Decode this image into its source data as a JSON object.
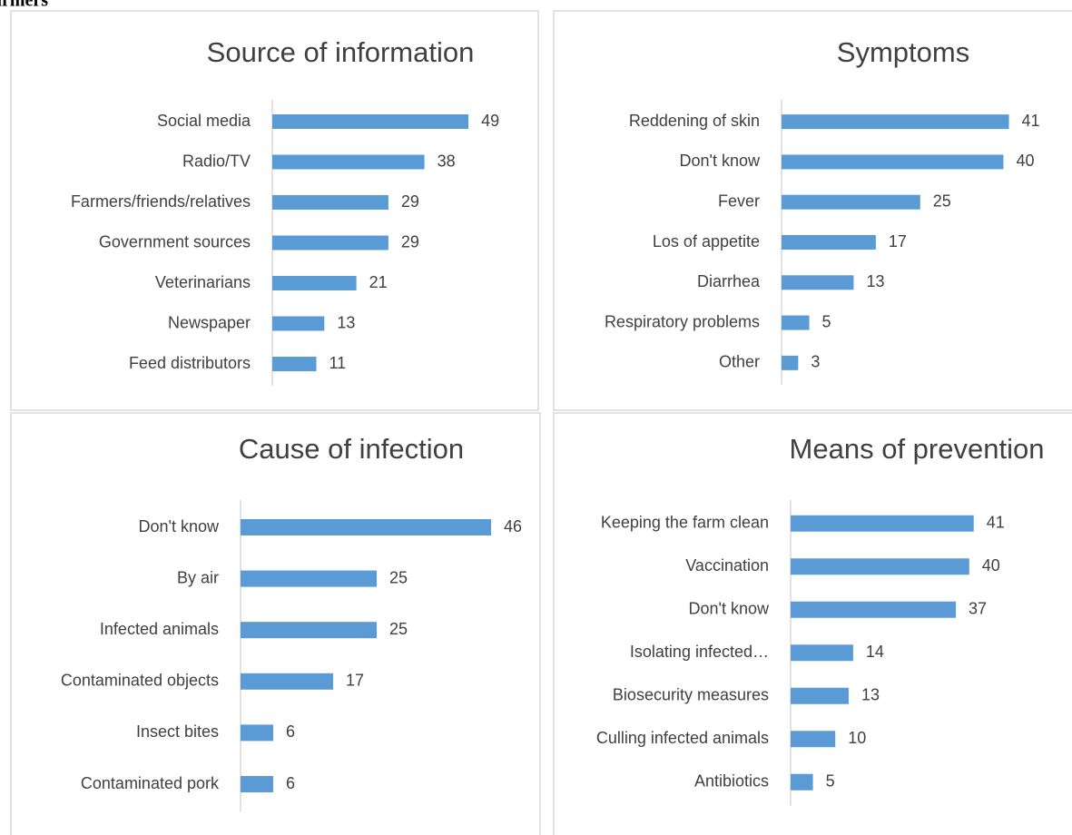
{
  "caption": "armers",
  "chart_data": [
    {
      "type": "bar",
      "orientation": "horizontal",
      "title": "Source of information",
      "categories": [
        "Social media",
        "Radio/TV",
        "Farmers/friends/relatives",
        "Government sources",
        "Veterinarians",
        "Newspaper",
        "Feed distributors"
      ],
      "values": [
        49,
        38,
        29,
        29,
        21,
        13,
        11
      ],
      "color": "#5b9bd5",
      "xlim": [
        0,
        60
      ]
    },
    {
      "type": "bar",
      "orientation": "horizontal",
      "title": "Symptoms",
      "categories": [
        "Reddening of skin",
        "Don't know",
        "Fever",
        "Los of appetite",
        "Diarrhea",
        "Respiratory problems",
        "Other"
      ],
      "values": [
        41,
        40,
        25,
        17,
        13,
        5,
        3
      ],
      "color": "#5b9bd5",
      "xlim": [
        0,
        45
      ]
    },
    {
      "type": "bar",
      "orientation": "horizontal",
      "title": "Cause of infection",
      "categories": [
        "Don't know",
        "By air",
        "Infected animals",
        "Contaminated objects",
        "Insect bites",
        "Contaminated pork"
      ],
      "values": [
        46,
        25,
        25,
        17,
        6,
        6
      ],
      "color": "#5b9bd5",
      "xlim": [
        0,
        50
      ]
    },
    {
      "type": "bar",
      "orientation": "horizontal",
      "title": "Means of prevention",
      "categories": [
        "Keeping the farm clean",
        "Vaccination",
        "Don't know",
        "Isolating infected…",
        "Biosecurity measures",
        "Culling infected animals",
        "Antibiotics"
      ],
      "values": [
        41,
        40,
        37,
        14,
        13,
        10,
        5
      ],
      "color": "#5b9bd5",
      "xlim": [
        0,
        50
      ]
    }
  ]
}
